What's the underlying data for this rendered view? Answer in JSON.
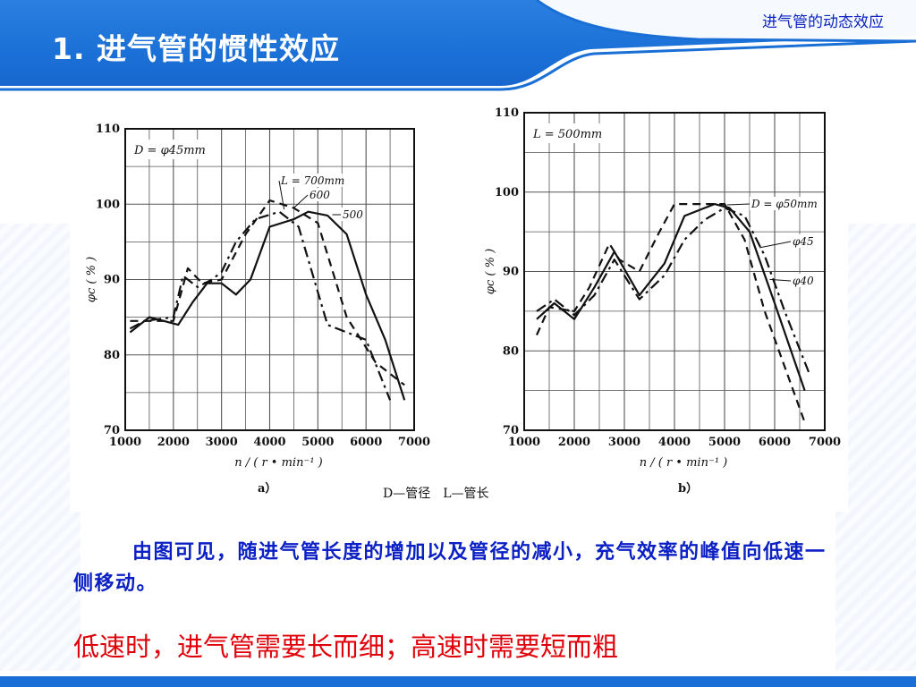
{
  "slide": {
    "title": "1. 进气管的惯性效应",
    "corner_label": "进气管的动态效应",
    "paragraph": "由图可见，随进气管长度的增加以及管径的减小，充气效率的峰值向低速一侧移动。",
    "conclusion": "低速时，进气管需要长而细；高速时需要短而粗"
  },
  "figure_caption": {
    "legend": "D—管径　L—管长"
  },
  "chart_data": [
    {
      "type": "line",
      "panel_label": "a）",
      "condition_label": "D = φ45mm",
      "xlabel": "n / ( r • min⁻¹ )",
      "ylabel": "φc ( % )",
      "xlim": [
        1000,
        7000
      ],
      "ylim": [
        70,
        110
      ],
      "xticks": [
        1000,
        2000,
        3000,
        4000,
        5000,
        6000,
        7000
      ],
      "yticks": [
        70,
        80,
        90,
        100,
        110
      ],
      "grid": true,
      "series": [
        {
          "name": "L = 700mm",
          "dash": "dashdot",
          "x": [
            1100,
            1400,
            2000,
            2200,
            2500,
            2800,
            3000,
            3300,
            3700,
            4200,
            4600,
            5200,
            5600,
            6000,
            6500
          ],
          "y": [
            83.5,
            84.5,
            85,
            90.5,
            89,
            90,
            91,
            95,
            98,
            99,
            97,
            84,
            83,
            82,
            74
          ]
        },
        {
          "name": "600",
          "dash": "dashed",
          "x": [
            1100,
            1500,
            2000,
            2300,
            2600,
            3000,
            3500,
            4000,
            4500,
            5000,
            5600,
            6200,
            6800
          ],
          "y": [
            84.5,
            84.5,
            84.5,
            91.5,
            89.5,
            90,
            96,
            100.5,
            99.5,
            97.5,
            85,
            79,
            76
          ]
        },
        {
          "name": "500",
          "dash": "solid",
          "x": [
            1100,
            1500,
            1800,
            2100,
            2400,
            2700,
            3000,
            3300,
            3600,
            4000,
            4500,
            4800,
            5200,
            5600,
            6000,
            6400,
            6800
          ],
          "y": [
            83,
            85,
            84.5,
            84,
            87,
            89.5,
            89.5,
            88,
            90,
            97,
            98,
            99,
            98.5,
            96,
            88,
            82,
            74
          ]
        }
      ]
    },
    {
      "type": "line",
      "panel_label": "b）",
      "condition_label": "L = 500mm",
      "xlabel": "n / ( r • min⁻¹ )",
      "ylabel": "φc ( % )",
      "xlim": [
        1000,
        7000
      ],
      "ylim": [
        70,
        110
      ],
      "xticks": [
        1000,
        2000,
        3000,
        4000,
        5000,
        6000,
        7000
      ],
      "yticks": [
        70,
        80,
        90,
        100,
        110
      ],
      "grid": true,
      "series": [
        {
          "name": "D = φ50mm",
          "dash": "dashed",
          "x": [
            1250,
            1500,
            2000,
            2300,
            2700,
            2900,
            3300,
            3700,
            4000,
            4500,
            5000,
            5400,
            5800,
            6200,
            6600
          ],
          "y": [
            82,
            85.5,
            85,
            88,
            93.5,
            91.5,
            90,
            95,
            98.5,
            98.5,
            98.5,
            94,
            85,
            78,
            71
          ]
        },
        {
          "name": "φ45",
          "dash": "solid",
          "x": [
            1250,
            1600,
            2000,
            2400,
            2800,
            3300,
            3800,
            4200,
            4800,
            5100,
            5500,
            6000,
            6600
          ],
          "y": [
            84,
            86,
            84,
            88,
            92.5,
            87,
            91,
            97,
            98.5,
            98,
            95,
            86,
            75
          ]
        },
        {
          "name": "φ40",
          "dash": "dashdot",
          "x": [
            1250,
            1600,
            2000,
            2400,
            2800,
            3300,
            3800,
            4200,
            4600,
            5000,
            5400,
            5800,
            6200,
            6700
          ],
          "y": [
            85,
            86.5,
            84.5,
            87,
            91.5,
            86.5,
            89.5,
            94,
            96.5,
            98,
            97,
            92,
            85,
            77
          ]
        }
      ]
    }
  ]
}
